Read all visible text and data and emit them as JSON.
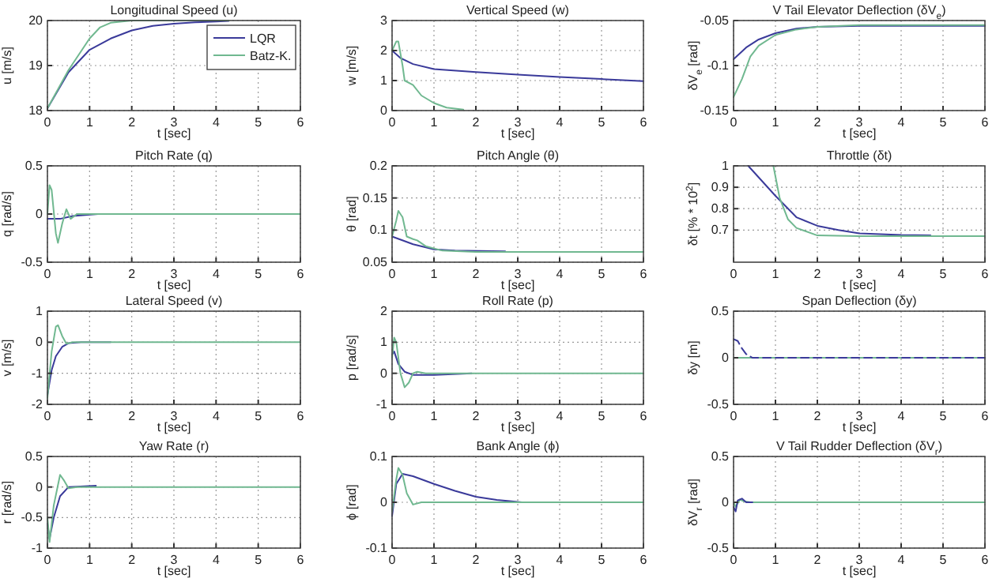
{
  "chart_data": [
    {
      "type": "line",
      "title": "Longitudinal Speed (u)",
      "xlabel": "t [sec]",
      "ylabel": "u [m/s]",
      "xlim": [
        0,
        6
      ],
      "xticks": [
        0,
        1,
        2,
        3,
        4,
        5,
        6
      ],
      "ylim": [
        18,
        20
      ],
      "yticks": [
        18,
        19,
        20
      ],
      "grid": true,
      "legend": "top right",
      "line_style": "solid",
      "series": [
        {
          "name": "LQR",
          "color": "#3a3a9a",
          "x": [
            0,
            0.5,
            1,
            1.5,
            2,
            2.5,
            3,
            3.5,
            4,
            4.3
          ],
          "values": [
            18.05,
            18.85,
            19.35,
            19.6,
            19.78,
            19.88,
            19.93,
            19.96,
            19.98,
            19.99
          ]
        },
        {
          "name": "Batz-K.",
          "color": "#70b890",
          "x": [
            0,
            0.5,
            1,
            1.25,
            1.5,
            2,
            3,
            4.3
          ],
          "values": [
            18.05,
            18.9,
            19.6,
            19.85,
            19.95,
            20,
            20,
            20
          ]
        }
      ]
    },
    {
      "type": "line",
      "title": "Vertical Speed (w)",
      "xlabel": "t [sec]",
      "ylabel": "w [m/s]",
      "xlim": [
        0,
        6
      ],
      "xticks": [
        0,
        1,
        2,
        3,
        4,
        5,
        6
      ],
      "ylim": [
        0,
        3
      ],
      "yticks": [
        0,
        1,
        2,
        3
      ],
      "grid": true,
      "line_style": "solid",
      "series": [
        {
          "color": "#3a3a9a",
          "x": [
            0,
            0.2,
            0.5,
            1,
            2,
            3,
            4,
            5,
            6
          ],
          "values": [
            2.0,
            1.75,
            1.55,
            1.38,
            1.28,
            1.2,
            1.12,
            1.05,
            0.98
          ]
        },
        {
          "color": "#70b890",
          "x": [
            0,
            0.1,
            0.15,
            0.25,
            0.3,
            0.5,
            0.7,
            1,
            1.3,
            1.7
          ],
          "values": [
            2.0,
            2.3,
            2.3,
            1.5,
            1.0,
            0.85,
            0.5,
            0.25,
            0.1,
            0.03
          ]
        }
      ]
    },
    {
      "type": "line",
      "title": "V Tail Elevator Deflection (δV$_{e}$)",
      "xlabel": "t [sec]",
      "ylabel": "δV$_{e}$ [rad]",
      "xlim": [
        0,
        6
      ],
      "xticks": [
        0,
        1,
        2,
        3,
        4,
        5,
        6
      ],
      "ylim": [
        -0.15,
        -0.05
      ],
      "yticks": [
        -0.15,
        -0.1,
        -0.05
      ],
      "grid": true,
      "line_style": "solid",
      "series": [
        {
          "color": "#3a3a9a",
          "x": [
            0,
            0.3,
            0.6,
            1,
            1.5,
            2,
            3,
            6
          ],
          "values": [
            -0.093,
            -0.08,
            -0.071,
            -0.064,
            -0.059,
            -0.057,
            -0.056,
            -0.056
          ]
        },
        {
          "color": "#70b890",
          "x": [
            0,
            0.2,
            0.4,
            0.6,
            1,
            1.5,
            2,
            3,
            6
          ],
          "values": [
            -0.135,
            -0.115,
            -0.09,
            -0.078,
            -0.066,
            -0.06,
            -0.057,
            -0.055,
            -0.055
          ]
        }
      ]
    },
    {
      "type": "line",
      "title": "Pitch Rate (q)",
      "xlabel": "t [sec]",
      "ylabel": "q [rad/s]",
      "xlim": [
        0,
        6
      ],
      "xticks": [
        0,
        1,
        2,
        3,
        4,
        5,
        6
      ],
      "ylim": [
        -0.5,
        0.5
      ],
      "yticks": [
        -0.5,
        0,
        0.5
      ],
      "grid": true,
      "line_style": "solid",
      "series": [
        {
          "color": "#3a3a9a",
          "x": [
            0,
            0.3,
            0.6,
            1.2
          ],
          "values": [
            -0.05,
            -0.05,
            -0.02,
            0
          ]
        },
        {
          "color": "#70b890",
          "x": [
            0,
            0.05,
            0.1,
            0.2,
            0.25,
            0.35,
            0.45,
            0.55,
            0.7,
            1,
            6
          ],
          "values": [
            0,
            0.3,
            0.25,
            -0.2,
            -0.3,
            -0.1,
            0.05,
            -0.05,
            0,
            0,
            0
          ]
        }
      ]
    },
    {
      "type": "line",
      "title": "Pitch Angle (θ)",
      "xlabel": "t [sec]",
      "ylabel": "θ [rad]",
      "xlim": [
        0,
        6
      ],
      "xticks": [
        0,
        1,
        2,
        3,
        4,
        5,
        6
      ],
      "ylim": [
        0.05,
        0.2
      ],
      "yticks": [
        0.05,
        0.1,
        0.15,
        0.2
      ],
      "grid": true,
      "line_style": "solid",
      "series": [
        {
          "color": "#3a3a9a",
          "x": [
            0,
            0.5,
            1,
            1.5,
            2.7
          ],
          "values": [
            0.09,
            0.078,
            0.07,
            0.068,
            0.067
          ]
        },
        {
          "color": "#70b890",
          "x": [
            0,
            0.1,
            0.15,
            0.25,
            0.35,
            0.5,
            0.6,
            0.8,
            1.2,
            2,
            6
          ],
          "values": [
            0.09,
            0.115,
            0.13,
            0.12,
            0.09,
            0.086,
            0.084,
            0.075,
            0.068,
            0.066,
            0.066
          ]
        }
      ]
    },
    {
      "type": "line",
      "title": "Throttle (δt)",
      "xlabel": "t [sec]",
      "ylabel": "δt [% * 10$^{2}$]",
      "xlim": [
        0,
        6
      ],
      "xticks": [
        0,
        1,
        2,
        3,
        4,
        5,
        6
      ],
      "ylim": [
        0.55,
        1
      ],
      "yticks": [
        0.7,
        0.8,
        0.9,
        1
      ],
      "grid": true,
      "line_style": "solid",
      "series": [
        {
          "color": "#3a3a9a",
          "x": [
            0.35,
            1,
            1.5,
            2,
            2.5,
            3,
            4,
            4.7
          ],
          "values": [
            1,
            0.86,
            0.76,
            0.72,
            0.7,
            0.685,
            0.677,
            0.675
          ]
        },
        {
          "color": "#70b890",
          "x": [
            0.95,
            1.1,
            1.3,
            1.5,
            2,
            3,
            6
          ],
          "values": [
            1,
            0.85,
            0.75,
            0.71,
            0.675,
            0.672,
            0.672
          ]
        }
      ]
    },
    {
      "type": "line",
      "title": "Lateral Speed (v)",
      "xlabel": "t [sec]",
      "ylabel": "v [m/s]",
      "xlim": [
        0,
        6
      ],
      "xticks": [
        0,
        1,
        2,
        3,
        4,
        5,
        6
      ],
      "ylim": [
        -2,
        1
      ],
      "yticks": [
        -2,
        -1,
        0,
        1
      ],
      "grid": true,
      "line_style": "solid",
      "series": [
        {
          "color": "#3a3a9a",
          "x": [
            0,
            0.1,
            0.2,
            0.35,
            0.5,
            0.8,
            1.5
          ],
          "values": [
            -1.7,
            -0.9,
            -0.45,
            -0.15,
            -0.03,
            0,
            0
          ]
        },
        {
          "color": "#70b890",
          "x": [
            0,
            0.1,
            0.2,
            0.25,
            0.35,
            0.45,
            0.6,
            6
          ],
          "values": [
            -1.8,
            -0.3,
            0.5,
            0.55,
            0.2,
            -0.05,
            0,
            0
          ]
        }
      ]
    },
    {
      "type": "line",
      "title": "Roll Rate (p)",
      "xlabel": "t [sec]",
      "ylabel": "p [rad/s]",
      "xlim": [
        0,
        6
      ],
      "xticks": [
        0,
        1,
        2,
        3,
        4,
        5,
        6
      ],
      "ylim": [
        -1,
        2
      ],
      "yticks": [
        -1,
        0,
        1,
        2
      ],
      "grid": true,
      "line_style": "solid",
      "series": [
        {
          "color": "#3a3a9a",
          "x": [
            0,
            0.05,
            0.15,
            0.3,
            0.5,
            1,
            1.9
          ],
          "values": [
            0.6,
            0.7,
            0.3,
            0.05,
            -0.05,
            -0.05,
            0
          ]
        },
        {
          "color": "#70b890",
          "x": [
            0,
            0.05,
            0.1,
            0.2,
            0.3,
            0.4,
            0.5,
            0.6,
            0.8,
            6
          ],
          "values": [
            0.5,
            1.15,
            1.0,
            0,
            -0.45,
            -0.3,
            0,
            0.05,
            0,
            0
          ]
        }
      ]
    },
    {
      "type": "line",
      "title": "Span Deflection (δy)",
      "xlabel": "t [sec]",
      "ylabel": "δy [m]",
      "xlim": [
        0,
        6
      ],
      "xticks": [
        0,
        1,
        2,
        3,
        4,
        5,
        6
      ],
      "ylim": [
        -0.5,
        0.5
      ],
      "yticks": [
        -0.5,
        0,
        0.5
      ],
      "grid": true,
      "line_style": "solid",
      "series": [
        {
          "color": "#70b890",
          "x": [
            0,
            6
          ],
          "values": [
            0,
            0
          ]
        },
        {
          "color": "#3a3a9a",
          "line_style": "dashed",
          "x": [
            0,
            0.1,
            0.2,
            0.3,
            0.45,
            6
          ],
          "values": [
            0.2,
            0.18,
            0.1,
            0.04,
            0,
            0
          ]
        }
      ]
    },
    {
      "type": "line",
      "title": "Yaw Rate (r)",
      "xlabel": "t [sec]",
      "ylabel": "r [rad/s]",
      "xlim": [
        0,
        6
      ],
      "xticks": [
        0,
        1,
        2,
        3,
        4,
        5,
        6
      ],
      "ylim": [
        -1,
        0.5
      ],
      "yticks": [
        -1,
        -0.5,
        0,
        0.5
      ],
      "grid": true,
      "line_style": "solid",
      "series": [
        {
          "color": "#3a3a9a",
          "x": [
            0,
            0.05,
            0.15,
            0.3,
            0.5,
            1.15
          ],
          "values": [
            -0.6,
            -0.85,
            -0.5,
            -0.15,
            0,
            0.02
          ]
        },
        {
          "color": "#70b890",
          "x": [
            0,
            0.05,
            0.15,
            0.3,
            0.4,
            0.5,
            0.7,
            6
          ],
          "values": [
            -0.5,
            -0.9,
            -0.3,
            0.2,
            0.1,
            -0.02,
            0,
            0
          ]
        }
      ]
    },
    {
      "type": "line",
      "title": "Bank Angle (ϕ)",
      "xlabel": "t [sec]",
      "ylabel": "ϕ [rad]",
      "xlim": [
        0,
        6
      ],
      "xticks": [
        0,
        1,
        2,
        3,
        4,
        5,
        6
      ],
      "ylim": [
        -0.1,
        0.1
      ],
      "yticks": [
        -0.1,
        0,
        0.1
      ],
      "grid": true,
      "line_style": "solid",
      "series": [
        {
          "color": "#3a3a9a",
          "x": [
            0,
            0.1,
            0.25,
            0.5,
            1,
            1.5,
            2,
            2.5,
            3.1
          ],
          "values": [
            -0.03,
            0.04,
            0.062,
            0.057,
            0.04,
            0.025,
            0.012,
            0.005,
            0
          ]
        },
        {
          "color": "#70b890",
          "x": [
            0,
            0.1,
            0.15,
            0.25,
            0.35,
            0.5,
            0.7,
            6
          ],
          "values": [
            -0.02,
            0.05,
            0.075,
            0.06,
            0.02,
            -0.005,
            0,
            0
          ]
        }
      ]
    },
    {
      "type": "line",
      "title": "V Tail Rudder Deflection (δV$_{r}$)",
      "xlabel": "t [sec]",
      "ylabel": "δV$_{r}$ [rad]",
      "xlim": [
        0,
        6
      ],
      "xticks": [
        0,
        1,
        2,
        3,
        4,
        5,
        6
      ],
      "ylim": [
        -0.5,
        0.5
      ],
      "yticks": [
        -0.5,
        0,
        0.5
      ],
      "grid": true,
      "line_style": "solid",
      "series": [
        {
          "color": "#70b890",
          "x": [
            0,
            0.05,
            0.15,
            0.25,
            0.4,
            6
          ],
          "values": [
            0,
            -0.05,
            0.03,
            0.01,
            0,
            0
          ]
        },
        {
          "color": "#3a3a9a",
          "x": [
            0,
            0.05,
            0.1,
            0.2,
            0.3,
            0.45
          ],
          "values": [
            -0.05,
            -0.1,
            0.02,
            0.04,
            0,
            0
          ]
        }
      ]
    }
  ]
}
